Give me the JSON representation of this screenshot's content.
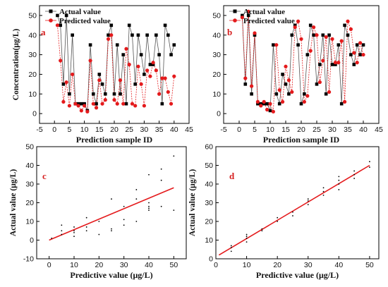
{
  "chart_data": [
    {
      "type": "line",
      "panel": "a",
      "xlabel": "Prediction sample ID",
      "ylabel": "Concentration(μg/L)",
      "xlim": [
        -5,
        45
      ],
      "ylim": [
        -5,
        55
      ],
      "xticks": [
        -5,
        0,
        5,
        10,
        15,
        20,
        25,
        30,
        35,
        40,
        45
      ],
      "yticks": [
        0,
        10,
        20,
        30,
        40,
        50
      ],
      "legend_position": "top-left",
      "series": [
        {
          "name": "Actual value",
          "color": "#000000",
          "marker": "square",
          "x": [
            1,
            2,
            3,
            4,
            5,
            6,
            7,
            8,
            9,
            10,
            11,
            12,
            13,
            14,
            15,
            16,
            17,
            18,
            19,
            20,
            21,
            22,
            23,
            24,
            25,
            26,
            27,
            28,
            29,
            30,
            31,
            32,
            33,
            34,
            35,
            36,
            37,
            38,
            39,
            40
          ],
          "y": [
            50,
            45,
            15,
            50,
            10,
            40,
            5,
            5,
            5,
            5,
            1.5,
            35,
            10,
            5,
            20,
            15,
            10,
            40,
            45,
            10,
            35,
            10,
            30,
            5,
            45,
            40,
            15,
            40,
            30,
            20,
            40,
            25,
            25,
            40,
            30,
            5,
            45,
            40,
            30,
            35
          ]
        },
        {
          "name": "Predicted value",
          "color": "#e41a1c",
          "marker": "circle",
          "x": [
            1,
            2,
            3,
            4,
            5,
            6,
            7,
            8,
            9,
            10,
            11,
            12,
            13,
            14,
            15,
            16,
            17,
            18,
            19,
            20,
            21,
            22,
            23,
            24,
            25,
            26,
            27,
            28,
            29,
            30,
            31,
            32,
            33,
            34,
            35,
            36,
            37,
            38,
            39,
            40
          ],
          "y": [
            45,
            27,
            6,
            16,
            4,
            20,
            5,
            4,
            1.5,
            4,
            1,
            27,
            5,
            3,
            17,
            5,
            7,
            38,
            40,
            7,
            5,
            17,
            5,
            33,
            25,
            5,
            4,
            24,
            15,
            4,
            22,
            19,
            26,
            22,
            10,
            18,
            18,
            11,
            5,
            19
          ]
        }
      ]
    },
    {
      "type": "line",
      "panel": "b",
      "xlabel": "Prediction sample ID",
      "ylabel": "",
      "xlim": [
        -5,
        45
      ],
      "ylim": [
        -5,
        55
      ],
      "xticks": [
        -5,
        0,
        5,
        10,
        15,
        20,
        25,
        30,
        35,
        40,
        45
      ],
      "yticks": [
        0,
        10,
        20,
        30,
        40,
        50
      ],
      "legend_position": "top-left",
      "series": [
        {
          "name": "Actual value",
          "color": "#000000",
          "marker": "square",
          "x": [
            1,
            2,
            3,
            4,
            5,
            6,
            7,
            8,
            9,
            10,
            11,
            12,
            13,
            14,
            15,
            16,
            17,
            18,
            19,
            20,
            21,
            22,
            23,
            24,
            25,
            26,
            27,
            28,
            29,
            30,
            31,
            32,
            33,
            34,
            35,
            36,
            37,
            38,
            39,
            40
          ],
          "y": [
            50,
            15,
            50,
            10,
            40,
            5,
            5,
            5,
            5,
            1.5,
            35,
            10,
            5,
            20,
            15,
            10,
            40,
            45,
            35,
            5,
            10,
            30,
            45,
            40,
            15,
            25,
            40,
            10,
            40,
            25,
            25,
            35,
            5,
            45,
            40,
            30,
            25,
            35,
            30,
            35
          ],
          "note_for_render": ""
        },
        {
          "name": "Predicted value",
          "color": "#e41a1c",
          "marker": "circle",
          "x": [
            1,
            2,
            3,
            4,
            5,
            6,
            7,
            8,
            9,
            10,
            11,
            12,
            13,
            14,
            15,
            16,
            17,
            18,
            19,
            20,
            21,
            22,
            23,
            24,
            25,
            26,
            27,
            28,
            29,
            30,
            31,
            32,
            33,
            34,
            35,
            36,
            37,
            38,
            39,
            40
          ],
          "y": [
            49,
            18,
            52,
            14,
            41,
            6,
            4,
            6,
            2,
            5,
            1,
            35,
            12,
            6,
            24,
            17,
            11,
            44,
            47,
            38,
            6,
            9,
            32,
            44,
            40,
            16,
            27,
            39,
            11,
            38,
            26,
            26,
            37,
            6,
            47,
            43,
            31,
            26,
            36,
            30
          ]
        }
      ]
    },
    {
      "type": "scatter",
      "panel": "c",
      "xlabel": "Predictive value (μg/L)",
      "ylabel": "Actual value (μg/L)",
      "xlim": [
        -5,
        55
      ],
      "ylim": [
        -10,
        50
      ],
      "xticks": [
        0,
        10,
        20,
        30,
        40,
        50
      ],
      "yticks": [
        -10,
        0,
        10,
        20,
        30,
        40,
        50
      ],
      "fit_line": {
        "color": "#e41a1c",
        "x": [
          0,
          50
        ],
        "y": [
          0,
          28
        ]
      },
      "points": {
        "color": "#000000",
        "x": [
          1,
          5,
          5,
          5,
          10,
          10,
          10,
          10,
          15,
          15,
          15,
          20,
          20,
          25,
          25,
          25,
          30,
          30,
          30,
          35,
          35,
          35,
          40,
          40,
          40,
          40,
          40,
          45,
          45,
          45,
          50,
          50
        ],
        "y": [
          1,
          3,
          5,
          8,
          2,
          4,
          5,
          7,
          5,
          7,
          12,
          3,
          10,
          5,
          6,
          22,
          8,
          11,
          18,
          10,
          22,
          27,
          16,
          17,
          18,
          20,
          35,
          18,
          38,
          32,
          16,
          45
        ]
      }
    },
    {
      "type": "scatter",
      "panel": "d",
      "xlabel": "Predictive value (μg/L)",
      "ylabel": "Actual value (μg/L)",
      "xlim": [
        0,
        53
      ],
      "ylim": [
        0,
        60
      ],
      "xticks": [
        0,
        10,
        20,
        30,
        40,
        50
      ],
      "yticks": [
        0,
        10,
        20,
        30,
        40,
        50,
        60
      ],
      "fit_line": {
        "color": "#e41a1c",
        "x": [
          1,
          50
        ],
        "y": [
          2,
          50
        ]
      },
      "points": {
        "color": "#000000",
        "x": [
          5,
          5,
          5,
          10,
          10,
          10,
          10,
          15,
          15,
          20,
          20,
          25,
          25,
          30,
          30,
          30,
          35,
          35,
          35,
          40,
          40,
          40,
          40,
          45,
          45,
          45,
          50,
          50
        ],
        "y": [
          4,
          6,
          7,
          9,
          11,
          12,
          13,
          15,
          16,
          20,
          22,
          23,
          25,
          29,
          31,
          32,
          34,
          36,
          38,
          37,
          40,
          42,
          44,
          43,
          45,
          47,
          49,
          52
        ]
      }
    }
  ],
  "figure": {
    "panel_letters": [
      "a",
      "b",
      "c",
      "d"
    ]
  }
}
